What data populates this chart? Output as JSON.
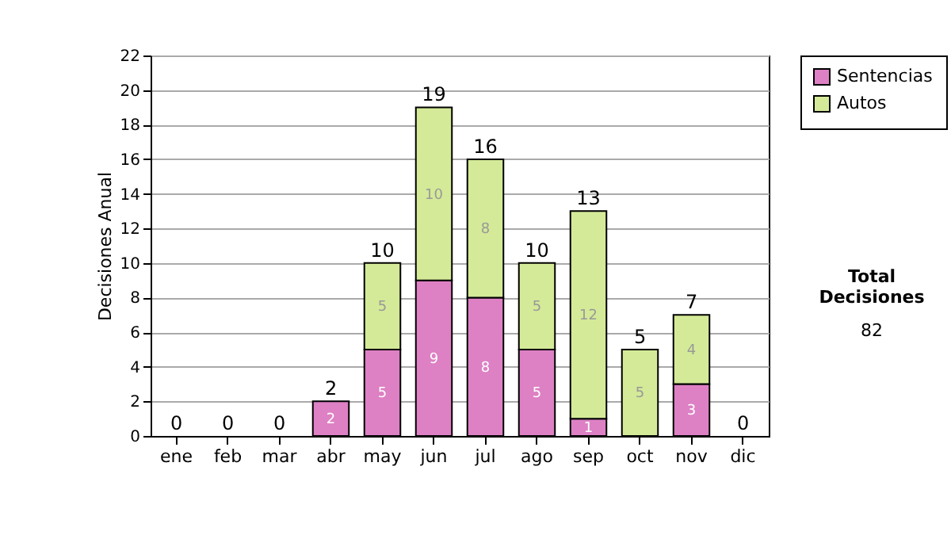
{
  "chart_data": {
    "type": "bar",
    "stacked": true,
    "ylabel": "Decisiones Anual",
    "categories": [
      "ene",
      "feb",
      "mar",
      "abr",
      "may",
      "jun",
      "jul",
      "ago",
      "sep",
      "oct",
      "nov",
      "dic"
    ],
    "series": [
      {
        "name": "Sentencias",
        "color": "#dd80c4",
        "values": [
          0,
          0,
          0,
          2,
          5,
          9,
          8,
          5,
          1,
          0,
          3,
          0
        ],
        "value_labels": [
          null,
          null,
          null,
          "2",
          "5",
          "9",
          "8",
          "5",
          "1",
          null,
          "3",
          null
        ]
      },
      {
        "name": "Autos",
        "color": "#d4ea98",
        "values": [
          0,
          0,
          0,
          0,
          5,
          10,
          8,
          5,
          12,
          5,
          4,
          0
        ],
        "value_labels": [
          null,
          null,
          null,
          null,
          "5",
          "10",
          "8",
          "5",
          "12",
          "5",
          "4",
          null
        ]
      }
    ],
    "totals": [
      "0",
      "0",
      "0",
      "2",
      "10",
      "19",
      "16",
      "10",
      "13",
      "5",
      "7",
      "0"
    ],
    "ylim": [
      0,
      22
    ],
    "yticks": [
      0,
      2,
      4,
      6,
      8,
      10,
      12,
      14,
      16,
      18,
      20,
      22
    ],
    "grid": "y",
    "legend": "right",
    "annotations": [
      "Total Decisiones",
      "82"
    ]
  }
}
